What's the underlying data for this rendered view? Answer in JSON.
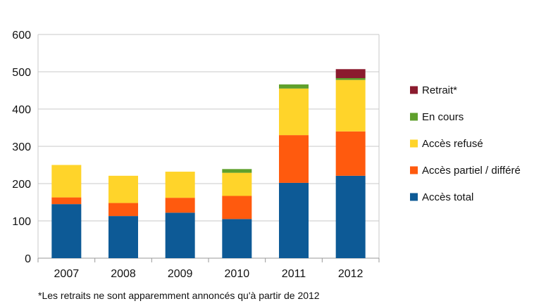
{
  "chart_data": {
    "type": "bar",
    "stacked": true,
    "categories": [
      "2007",
      "2008",
      "2009",
      "2010",
      "2011",
      "2012"
    ],
    "series": [
      {
        "name": "Accès total",
        "color": "#0d5a96",
        "values": [
          145,
          113,
          122,
          105,
          202,
          221
        ]
      },
      {
        "name": "Accès partiel / différé",
        "color": "#ff5a0e",
        "values": [
          18,
          35,
          40,
          62,
          128,
          119
        ]
      },
      {
        "name": "Accès refusé",
        "color": "#ffd42a",
        "values": [
          87,
          73,
          70,
          62,
          125,
          138
        ]
      },
      {
        "name": "En cours",
        "color": "#5fa02c",
        "values": [
          0,
          0,
          0,
          10,
          11,
          5
        ]
      },
      {
        "name": "Retrait*",
        "color": "#8b1b2e",
        "values": [
          0,
          0,
          0,
          0,
          0,
          24
        ]
      }
    ],
    "ylim": [
      0,
      600
    ],
    "yticks": [
      0,
      100,
      200,
      300,
      400,
      500,
      600
    ],
    "grid": true,
    "legend_position": "right",
    "legend_order": [
      "Retrait*",
      "En cours",
      "Accès refusé",
      "Accès partiel / différé",
      "Accès total"
    ]
  },
  "footnote": "*Les retraits ne sont apparemment annoncés qu'à partir de 2012"
}
